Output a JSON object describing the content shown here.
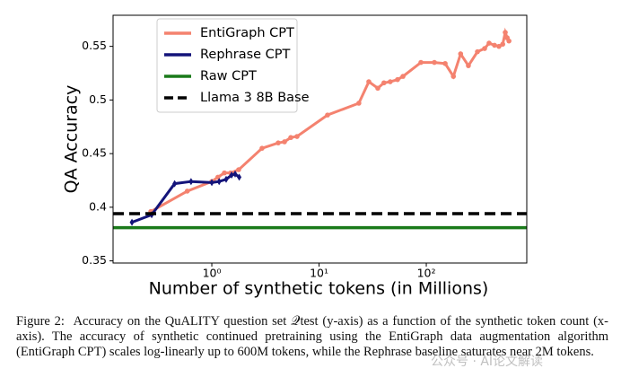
{
  "chart_data": {
    "type": "line",
    "xlabel": "Number of synthetic tokens (in Millions)",
    "ylabel": "QA Accuracy",
    "xscale": "log",
    "xlim": [
      0.12,
      865
    ],
    "ylim": [
      0.348,
      0.579
    ],
    "xticks": [
      {
        "value": 1,
        "label": "10⁰"
      },
      {
        "value": 10,
        "label": "10¹"
      },
      {
        "value": 100,
        "label": "10²"
      }
    ],
    "yticks": [
      0.35,
      0.4,
      0.45,
      0.5,
      0.55
    ],
    "grid": false,
    "legend": "upper-left",
    "series": [
      {
        "name": "EntiGraph CPT",
        "color": "#f4826f",
        "marker": "circle",
        "x": [
          0.27,
          0.59,
          1.0,
          1.14,
          1.31,
          1.5,
          1.78,
          2.94,
          4.16,
          4.76,
          5.45,
          6.23,
          12.0,
          23.5,
          29.1,
          35.3,
          40.3,
          46.1,
          53.9,
          60.6,
          89.1,
          119,
          150,
          179,
          209,
          247,
          300,
          350,
          385,
          433,
          476,
          516,
          545,
          568,
          590
        ],
        "values": [
          0.396,
          0.415,
          0.424,
          0.428,
          0.432,
          0.432,
          0.435,
          0.455,
          0.46,
          0.461,
          0.465,
          0.466,
          0.486,
          0.497,
          0.517,
          0.511,
          0.516,
          0.517,
          0.519,
          0.522,
          0.535,
          0.535,
          0.534,
          0.522,
          0.543,
          0.532,
          0.545,
          0.548,
          0.553,
          0.551,
          0.55,
          0.552,
          0.563,
          0.558,
          0.555
        ]
      },
      {
        "name": "Rephrase CPT",
        "color": "#14147a",
        "marker": "diamond",
        "x": [
          0.18,
          0.275,
          0.45,
          0.64,
          1.0,
          1.17,
          1.36,
          1.53,
          1.65,
          1.8
        ],
        "values": [
          0.386,
          0.393,
          0.422,
          0.424,
          0.423,
          0.424,
          0.426,
          0.43,
          0.431,
          0.428
        ]
      },
      {
        "name": "Raw CPT",
        "color": "#1a7a1a",
        "kind": "hline",
        "linestyle": "solid",
        "values": [
          0.381
        ]
      },
      {
        "name": "Llama 3 8B Base",
        "color": "#000000",
        "kind": "hline",
        "linestyle": "dashed",
        "values": [
          0.394
        ]
      }
    ]
  },
  "caption": {
    "label": "Figure 2:",
    "text": "Accuracy on the QuALITY question set 𝒬test (y-axis) as a function of the synthetic token count (x-axis). The accuracy of synthetic continued pretraining using the EntiGraph data augmentation algorithm (EntiGraph CPT) scales log-linearly up to 600M tokens, while the Rephrase baseline saturates near 2M tokens."
  },
  "watermark": "公众号 · AI论文解读"
}
